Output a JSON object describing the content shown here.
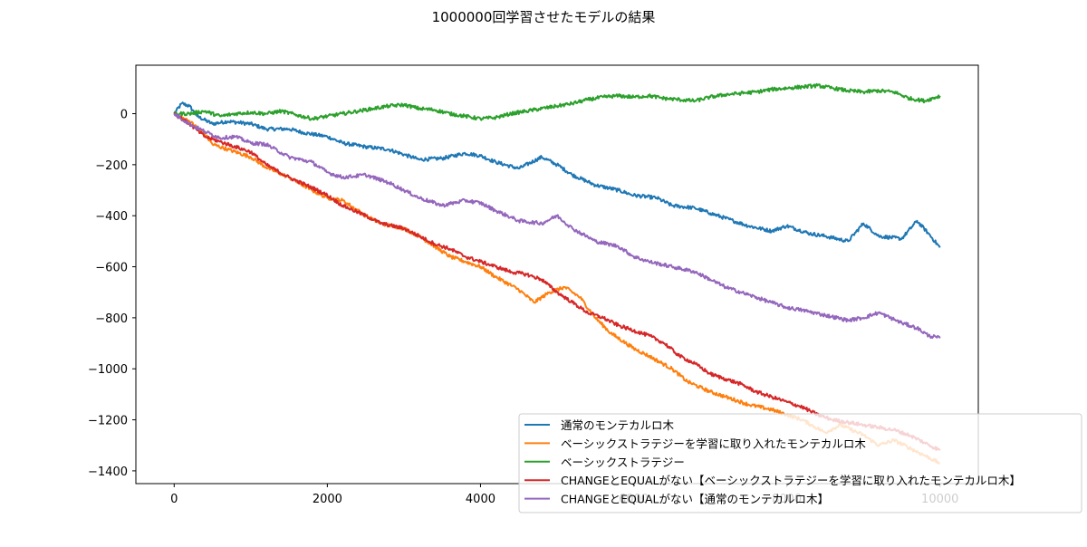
{
  "colors": {
    "blue": "#1f77b4",
    "orange": "#ff7f0e",
    "green": "#2ca02c",
    "red": "#d62728",
    "purple": "#9467bd"
  },
  "chart_data": {
    "type": "line",
    "title": "1000000回学習させたモデルの結果",
    "xlabel": "",
    "ylabel": "",
    "xlim": [
      -500,
      10500
    ],
    "ylim": [
      -1450,
      190
    ],
    "xticks": [
      0,
      2000,
      4000,
      6000,
      8000,
      10000
    ],
    "xtick_labels": [
      "0",
      "2000",
      "4000",
      "6000",
      "8000",
      "10000"
    ],
    "yticks": [
      0,
      -200,
      -400,
      -600,
      -800,
      -1000,
      -1200,
      -1400
    ],
    "ytick_labels": [
      "0",
      "−200",
      "−400",
      "−600",
      "−800",
      "−1000",
      "−1200",
      "−1400"
    ],
    "grid": false,
    "legend_position": "lower-right",
    "series": [
      {
        "name": "通常のモンテカルロ木",
        "color": "#1f77b4",
        "x": [
          0,
          100,
          200,
          300,
          500,
          700,
          1000,
          1200,
          1500,
          1700,
          2000,
          2200,
          2500,
          2800,
          3000,
          3200,
          3500,
          3800,
          4000,
          4200,
          4500,
          4800,
          5000,
          5200,
          5500,
          5800,
          6000,
          6300,
          6500,
          6800,
          7000,
          7300,
          7500,
          7800,
          8000,
          8300,
          8500,
          8800,
          9000,
          9200,
          9500,
          9700,
          9850,
          10000
        ],
        "y": [
          0,
          40,
          30,
          -10,
          -40,
          -30,
          -40,
          -60,
          -60,
          -75,
          -90,
          -115,
          -130,
          -140,
          -160,
          -180,
          -175,
          -155,
          -165,
          -190,
          -215,
          -170,
          -200,
          -240,
          -280,
          -300,
          -320,
          -330,
          -360,
          -370,
          -390,
          -420,
          -440,
          -460,
          -440,
          -470,
          -480,
          -500,
          -430,
          -480,
          -490,
          -420,
          -470,
          -525
        ]
      },
      {
        "name": "ベーシックストラテジーを学習に取り入れたモンテカルロ木",
        "color": "#ff7f0e",
        "x": [
          0,
          200,
          400,
          500,
          700,
          1000,
          1200,
          1500,
          1800,
          2000,
          2200,
          2500,
          2700,
          3000,
          3200,
          3400,
          3600,
          3800,
          4000,
          4200,
          4500,
          4700,
          4900,
          5100,
          5300,
          5500,
          5700,
          6000,
          6200,
          6500,
          6700,
          7000,
          7200,
          7500,
          7800,
          8000,
          8200,
          8500,
          8700,
          9000,
          9200,
          9400,
          9600,
          9800,
          10000
        ],
        "y": [
          0,
          -30,
          -80,
          -120,
          -140,
          -170,
          -210,
          -250,
          -300,
          -330,
          -340,
          -400,
          -430,
          -450,
          -480,
          -520,
          -560,
          -580,
          -600,
          -640,
          -690,
          -740,
          -700,
          -680,
          -720,
          -800,
          -860,
          -920,
          -950,
          -1000,
          -1050,
          -1090,
          -1110,
          -1140,
          -1160,
          -1180,
          -1200,
          -1250,
          -1220,
          -1260,
          -1300,
          -1280,
          -1310,
          -1340,
          -1370
        ]
      },
      {
        "name": "ベーシックストラテジー",
        "color": "#2ca02c",
        "x": [
          0,
          200,
          400,
          600,
          800,
          1000,
          1200,
          1400,
          1600,
          1800,
          2000,
          2200,
          2400,
          2600,
          2800,
          3000,
          3200,
          3400,
          3600,
          3800,
          4000,
          4200,
          4400,
          4600,
          4800,
          5000,
          5200,
          5400,
          5600,
          5800,
          6000,
          6200,
          6400,
          6600,
          6800,
          7000,
          7200,
          7400,
          7600,
          7800,
          8000,
          8200,
          8400,
          8600,
          8800,
          9000,
          9200,
          9400,
          9600,
          9800,
          10000
        ],
        "y": [
          0,
          0,
          10,
          -10,
          0,
          5,
          0,
          10,
          -5,
          -20,
          -10,
          0,
          10,
          20,
          30,
          35,
          20,
          15,
          0,
          -10,
          -20,
          -15,
          0,
          10,
          20,
          30,
          40,
          55,
          65,
          70,
          65,
          70,
          60,
          55,
          50,
          65,
          75,
          80,
          85,
          95,
          100,
          105,
          110,
          100,
          90,
          85,
          90,
          85,
          60,
          50,
          70
        ]
      },
      {
        "name": "CHANGEとEQUALがない【ベーシックストラテジーを学習に取り入れたモンテカルロ木】",
        "color": "#d62728",
        "x": [
          0,
          200,
          400,
          600,
          800,
          1000,
          1200,
          1500,
          1800,
          2000,
          2200,
          2500,
          2700,
          3000,
          3200,
          3400,
          3600,
          3800,
          4000,
          4200,
          4400,
          4600,
          4800,
          5000,
          5200,
          5400,
          5600,
          5800,
          6000,
          6200,
          6400,
          6600,
          6800,
          7000,
          7200,
          7400,
          7600,
          7800,
          8000,
          8200,
          8400,
          8600,
          8800,
          9000,
          9200,
          9400,
          9600,
          9800,
          10000
        ],
        "y": [
          0,
          -40,
          -90,
          -110,
          -130,
          -150,
          -200,
          -250,
          -290,
          -320,
          -360,
          -400,
          -430,
          -450,
          -480,
          -510,
          -530,
          -560,
          -580,
          -600,
          -620,
          -630,
          -650,
          -700,
          -740,
          -780,
          -800,
          -830,
          -850,
          -870,
          -900,
          -950,
          -980,
          -1020,
          -1040,
          -1060,
          -1090,
          -1110,
          -1130,
          -1150,
          -1180,
          -1200,
          -1210,
          -1220,
          -1230,
          -1240,
          -1260,
          -1290,
          -1320
        ]
      },
      {
        "name": "CHANGEとEQUALがない【通常のモンテカルロ木】",
        "color": "#9467bd",
        "x": [
          0,
          200,
          400,
          600,
          800,
          1000,
          1200,
          1500,
          1800,
          2000,
          2200,
          2500,
          2800,
          3000,
          3200,
          3500,
          3800,
          4000,
          4200,
          4500,
          4800,
          5000,
          5200,
          5500,
          5800,
          6000,
          6200,
          6500,
          6800,
          7000,
          7200,
          7500,
          7800,
          8000,
          8200,
          8500,
          8800,
          9000,
          9200,
          9500,
          9700,
          9850,
          10000
        ],
        "y": [
          0,
          -40,
          -70,
          -95,
          -90,
          -115,
          -120,
          -170,
          -190,
          -230,
          -250,
          -240,
          -270,
          -300,
          -330,
          -360,
          -340,
          -350,
          -380,
          -420,
          -430,
          -400,
          -450,
          -500,
          -520,
          -560,
          -580,
          -600,
          -620,
          -650,
          -680,
          -710,
          -740,
          -760,
          -770,
          -790,
          -810,
          -800,
          -780,
          -820,
          -840,
          -870,
          -880
        ]
      }
    ]
  }
}
